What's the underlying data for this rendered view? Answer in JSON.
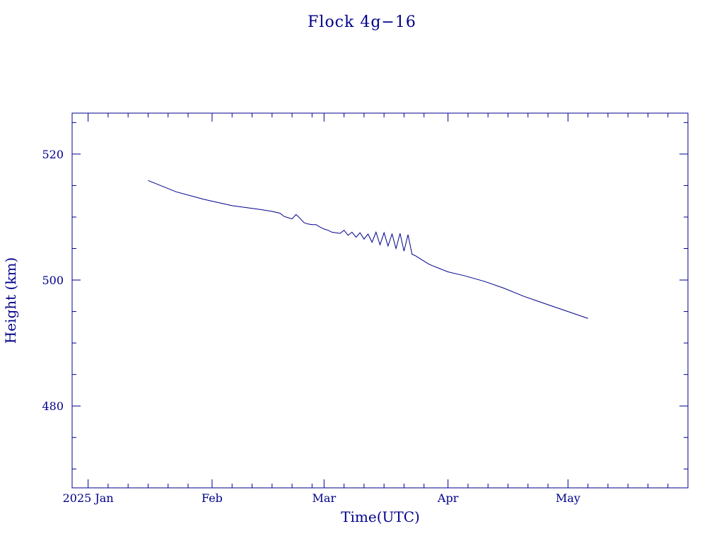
{
  "chart_data": {
    "type": "line",
    "title": "Flock 4g−16",
    "xlabel": "Time(UTC)",
    "ylabel": "Height (km)",
    "xlim": [
      "2024-12-28",
      "2025-05-31"
    ],
    "ylim": [
      467,
      526.5
    ],
    "x_ticks": [
      {
        "date": "2025-01-01",
        "label": "2025 Jan"
      },
      {
        "date": "2025-02-01",
        "label": "Feb"
      },
      {
        "date": "2025-03-01",
        "label": "Mar"
      },
      {
        "date": "2025-04-01",
        "label": "Apr"
      },
      {
        "date": "2025-05-01",
        "label": "May"
      }
    ],
    "y_ticks": [
      480,
      500,
      520
    ],
    "grid": false,
    "color": "#00008b",
    "series": [
      {
        "x": [
          "2025-01-16",
          "2025-01-23",
          "2025-01-30",
          "2025-02-06",
          "2025-02-13",
          "2025-02-16",
          "2025-02-18",
          "2025-02-19",
          "2025-02-20",
          "2025-02-21",
          "2025-02-22",
          "2025-02-23",
          "2025-02-24",
          "2025-02-25",
          "2025-02-26",
          "2025-02-27",
          "2025-02-28",
          "2025-03-01",
          "2025-03-02",
          "2025-03-03",
          "2025-03-04",
          "2025-03-05",
          "2025-03-06",
          "2025-03-07",
          "2025-03-08",
          "2025-03-09",
          "2025-03-10",
          "2025-03-11",
          "2025-03-12",
          "2025-03-13",
          "2025-03-14",
          "2025-03-15",
          "2025-03-16",
          "2025-03-17",
          "2025-03-18",
          "2025-03-19",
          "2025-03-20",
          "2025-03-21",
          "2025-03-22",
          "2025-03-23",
          "2025-03-24",
          "2025-03-25",
          "2025-03-26",
          "2025-03-27",
          "2025-03-28",
          "2025-03-30",
          "2025-04-01",
          "2025-04-05",
          "2025-04-10",
          "2025-04-15",
          "2025-04-20",
          "2025-04-25",
          "2025-05-01",
          "2025-05-06"
        ],
        "y": [
          515.8,
          514.0,
          512.8,
          511.8,
          511.2,
          510.9,
          510.6,
          510.1,
          509.9,
          509.7,
          510.4,
          509.8,
          509.1,
          508.9,
          508.8,
          508.8,
          508.4,
          508.1,
          507.9,
          507.6,
          507.5,
          507.4,
          507.9,
          507.1,
          507.6,
          506.8,
          507.5,
          506.5,
          507.3,
          506.0,
          507.6,
          505.6,
          507.5,
          505.4,
          507.3,
          505.0,
          507.4,
          504.6,
          507.2,
          504.1,
          503.8,
          503.4,
          503.0,
          502.6,
          502.3,
          501.8,
          501.3,
          500.7,
          499.8,
          498.7,
          497.4,
          496.3,
          495.0,
          493.9
        ]
      }
    ]
  }
}
